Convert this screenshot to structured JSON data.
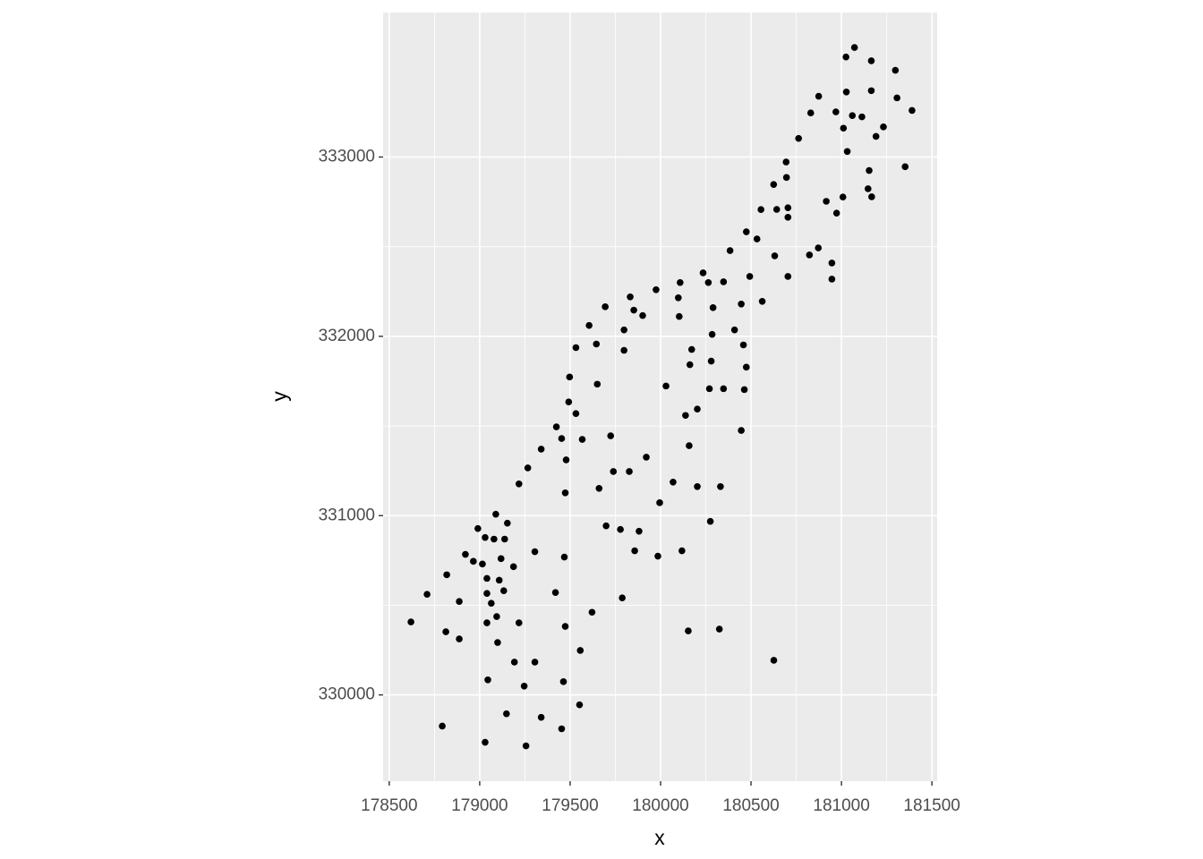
{
  "chart_data": {
    "type": "scatter",
    "x_label": "x",
    "y_label": "y",
    "color": "#000000",
    "grid": true,
    "xlim": [
      178466,
      181529
    ],
    "ylim": [
      329519,
      333806
    ],
    "xticks": [
      178500,
      179000,
      179500,
      180000,
      180500,
      181000,
      181500
    ],
    "yticks": [
      330000,
      331000,
      332000,
      333000
    ],
    "x": [
      181072,
      181025,
      181165,
      181298,
      181307,
      181390,
      181165,
      181027,
      181060,
      181232,
      181191,
      181032,
      180874,
      180969,
      181011,
      180830,
      180763,
      180694,
      180625,
      180555,
      180642,
      180704,
      180704,
      181153,
      181147,
      181167,
      181008,
      180973,
      180916,
      181352,
      181113,
      180696,
      180474,
      180533,
      180384,
      180631,
      180823,
      180872,
      180947,
      180947,
      180704,
      180493,
      180562,
      180446,
      180348,
      180264,
      180235,
      180290,
      180108,
      180098,
      180103,
      179975,
      179901,
      179852,
      179832,
      179694,
      179605,
      179645,
      179532,
      179798,
      179798,
      180409,
      180285,
      180458,
      180172,
      180280,
      180162,
      180474,
      180030,
      180348,
      180270,
      180463,
      179650,
      179497,
      179492,
      179532,
      180203,
      180138,
      179424,
      180446,
      179453,
      179567,
      179724,
      180158,
      179340,
      179478,
      179921,
      179266,
      179739,
      179827,
      179217,
      180069,
      179660,
      180203,
      180331,
      179473,
      179995,
      179089,
      179153,
      180275,
      178990,
      179699,
      179778,
      179881,
      179030,
      179079,
      179138,
      178921,
      179305,
      179857,
      180118,
      179985,
      178965,
      179015,
      179118,
      179468,
      179187,
      178818,
      179040,
      179108,
      179133,
      179040,
      178709,
      179419,
      179788,
      178887,
      179064,
      179621,
      179094,
      178620,
      179040,
      179217,
      179473,
      178813,
      180153,
      180325,
      178887,
      179099,
      179556,
      180626,
      179192,
      179305,
      179045,
      179463,
      179246,
      179552,
      179148,
      179340,
      178793,
      179453,
      179030,
      179256
    ],
    "values": [
      333611,
      333558,
      333537,
      333484,
      333330,
      333260,
      333370,
      333363,
      333231,
      333168,
      333115,
      333031,
      333339,
      333252,
      333161,
      333246,
      333104,
      332972,
      332847,
      332707,
      332708,
      332717,
      332664,
      332925,
      332823,
      332778,
      332777,
      332687,
      332753,
      332946,
      333224,
      332886,
      332583,
      332543,
      332478,
      332449,
      332454,
      332493,
      332409,
      332319,
      332334,
      332334,
      332195,
      332180,
      332304,
      332300,
      332354,
      332160,
      332300,
      332215,
      332111,
      332260,
      332116,
      332146,
      332220,
      332165,
      332061,
      331957,
      331937,
      332036,
      331922,
      332036,
      332011,
      331952,
      331927,
      331862,
      331842,
      331828,
      331723,
      331708,
      331708,
      331703,
      331733,
      331773,
      331634,
      331569,
      331594,
      331559,
      331495,
      331475,
      331430,
      331425,
      331445,
      331390,
      331371,
      331311,
      331326,
      331266,
      331246,
      331246,
      331177,
      331187,
      331152,
      331162,
      331162,
      331127,
      331072,
      331008,
      330958,
      330968,
      330928,
      330943,
      330923,
      330913,
      330878,
      330869,
      330869,
      330784,
      330799,
      330804,
      330804,
      330774,
      330745,
      330730,
      330760,
      330769,
      330715,
      330670,
      330650,
      330640,
      330581,
      330566,
      330561,
      330571,
      330541,
      330521,
      330511,
      330461,
      330437,
      330407,
      330402,
      330402,
      330382,
      330352,
      330357,
      330367,
      330312,
      330292,
      330248,
      330193,
      330183,
      330183,
      330084,
      330074,
      330049,
      329945,
      329895,
      329875,
      329826,
      329811,
      329736,
      329716
    ]
  }
}
